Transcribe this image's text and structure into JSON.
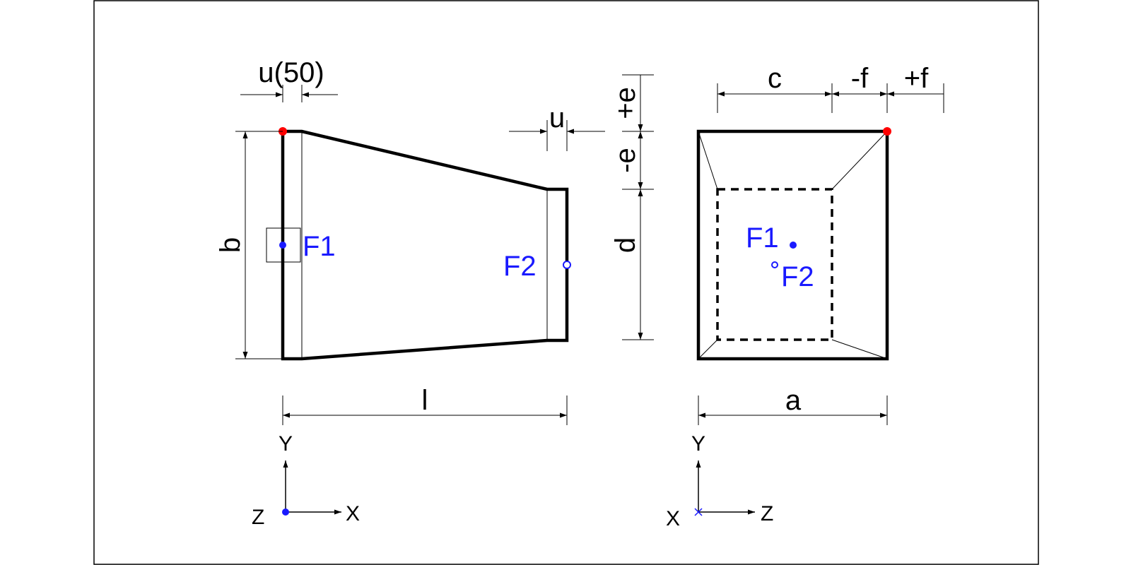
{
  "colors": {
    "line": "#000000",
    "force": "#1a1aff",
    "reference_point": "#ff0000",
    "frame": "#000000",
    "background": "#ffffff"
  },
  "side_view": {
    "dimensions": {
      "u50_label": "u(50)",
      "u_label": "u",
      "b_label": "b",
      "l_label": "l"
    },
    "forces": {
      "f1_label": "F1",
      "f2_label": "F2"
    },
    "axes": {
      "vertical_label": "Y",
      "horizontal_label": "X",
      "out_of_plane_label": "Z"
    }
  },
  "end_view": {
    "dimensions": {
      "c_label": "c",
      "minus_f_label": "-f",
      "plus_f_label": "+f",
      "plus_e_label": "+e",
      "minus_e_label": "-e",
      "d_label": "d",
      "a_label": "a"
    },
    "forces": {
      "f1_label": "F1",
      "f2_label": "F2"
    },
    "axes": {
      "vertical_label": "Y",
      "horizontal_label": "Z",
      "out_of_plane_label": "X"
    }
  }
}
